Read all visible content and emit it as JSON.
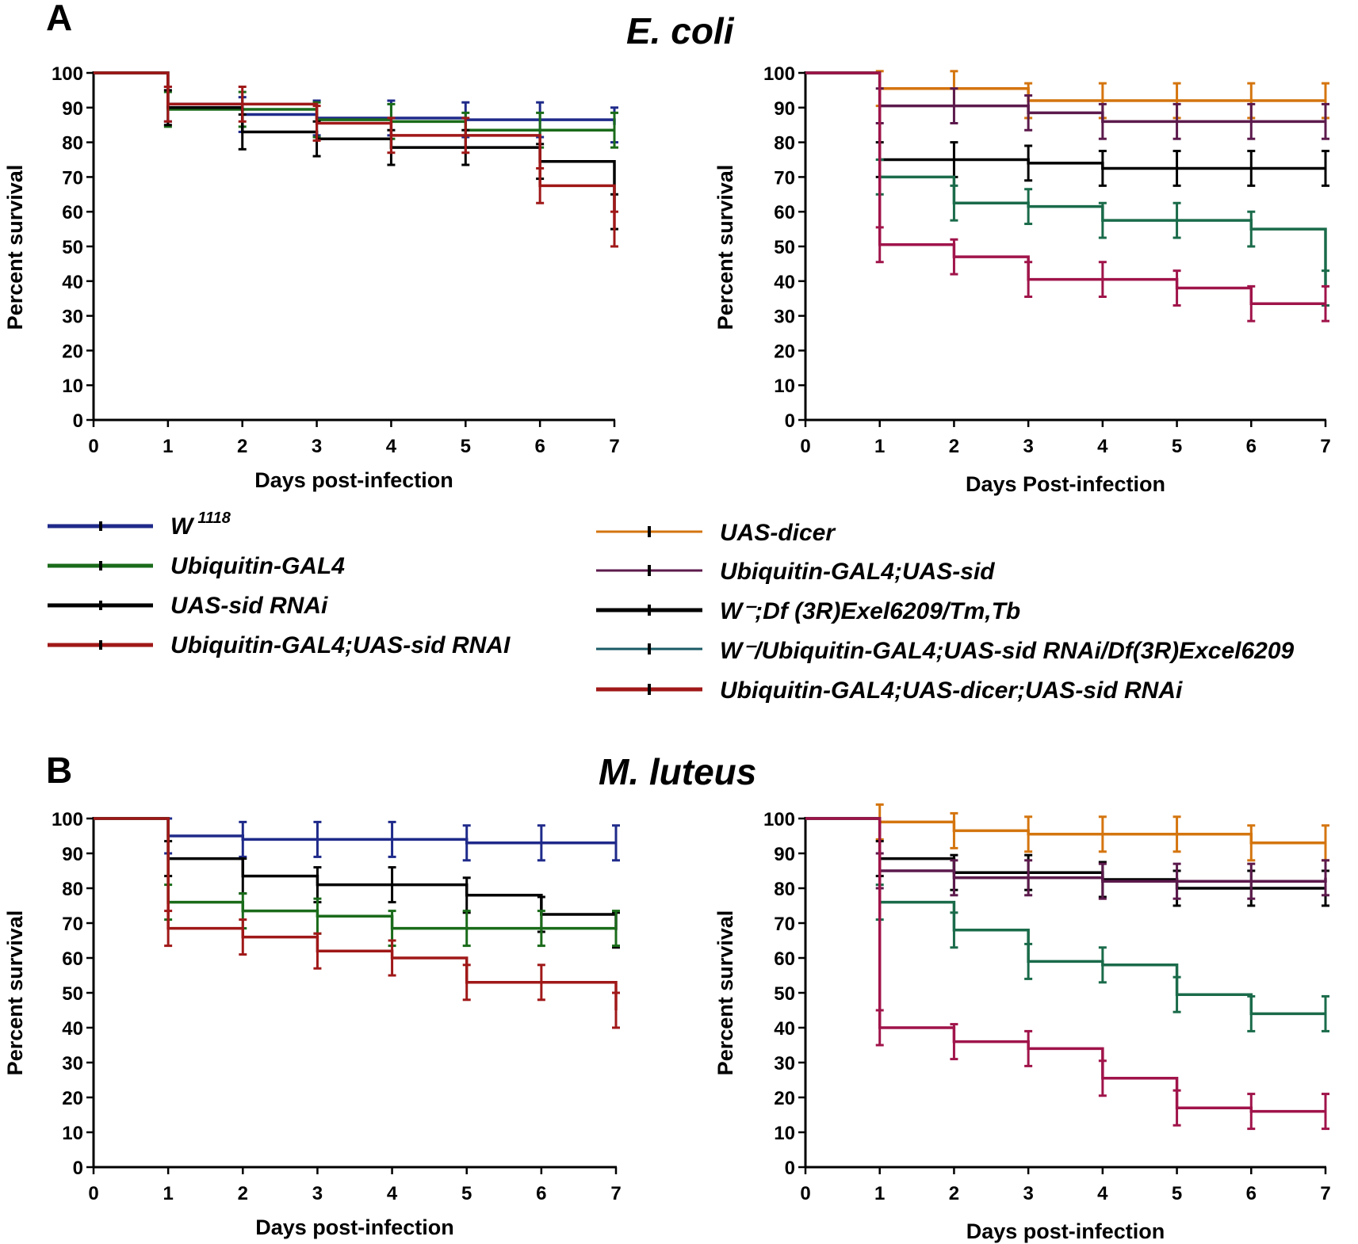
{
  "figure": {
    "panel_A": {
      "letter": "A",
      "title": "E. coli"
    },
    "panel_B": {
      "letter": "B",
      "title": "M. luteus"
    }
  },
  "legend_left": [
    {
      "label": "W",
      "sup": "1118",
      "color": "#1f2a8a"
    },
    {
      "label": "Ubiquitin-GAL4",
      "sup": "",
      "color": "#1a6b1a"
    },
    {
      "label": "UAS-sid RNAi",
      "sup": "",
      "color": "#000000"
    },
    {
      "label": "Ubiquitin-GAL4;UAS-sid RNAI",
      "sup": "",
      "color": "#a01818"
    }
  ],
  "legend_right": [
    {
      "label": "UAS-dicer",
      "color": "#d4750f"
    },
    {
      "label": "Ubiquitin-GAL4;UAS-sid",
      "color": "#5c1a4c"
    },
    {
      "label": "W⁻;Df (3R)Exel6209/Tm,Tb",
      "color": "#000000"
    },
    {
      "label": "W⁻/Ubiquitin-GAL4;UAS-sid RNAi/Df(3R)Excel6209",
      "color": "#1a5a66"
    },
    {
      "label": "Ubiquitin-GAL4;UAS-dicer;UAS-sid RNAi",
      "color": "#a01818"
    }
  ],
  "chart_data": [
    {
      "id": "A-left",
      "type": "line",
      "step": true,
      "xlabel": "Days post-infection",
      "ylabel": "Percent survival",
      "xlim": [
        0,
        7
      ],
      "ylim": [
        0,
        100
      ],
      "xticks": [
        0,
        1,
        2,
        3,
        4,
        5,
        6,
        7
      ],
      "yticks": [
        0,
        10,
        20,
        30,
        40,
        50,
        60,
        70,
        80,
        90,
        100
      ],
      "grid": false,
      "series": [
        {
          "name": "W 1118",
          "color": "#1f2a8a",
          "x": [
            0,
            1,
            2,
            3,
            4,
            5,
            6,
            7
          ],
          "y": [
            100,
            91,
            88,
            87,
            87,
            86.5,
            86.5,
            85
          ]
        },
        {
          "name": "Ubiquitin-GAL4",
          "color": "#1a6b1a",
          "x": [
            0,
            1,
            2,
            3,
            4,
            5,
            6,
            7
          ],
          "y": [
            100,
            89.5,
            89.5,
            86.5,
            86,
            83.5,
            83.5,
            83.5
          ]
        },
        {
          "name": "UAS-sid RNAi",
          "color": "#000000",
          "x": [
            0,
            1,
            2,
            3,
            4,
            5,
            6,
            7
          ],
          "y": [
            100,
            90,
            83,
            81,
            78.5,
            78.5,
            74.5,
            60
          ]
        },
        {
          "name": "Ubiquitin-GAL4;UAS-sid RNAI",
          "color": "#a01818",
          "x": [
            0,
            1,
            2,
            3,
            4,
            5,
            6,
            7
          ],
          "y": [
            100,
            91,
            91,
            85.5,
            82,
            82,
            67.5,
            55
          ]
        }
      ]
    },
    {
      "id": "A-right",
      "type": "line",
      "step": true,
      "xlabel": "Days Post-infection",
      "ylabel": "Percent survival",
      "xlim": [
        0,
        7
      ],
      "ylim": [
        0,
        100
      ],
      "xticks": [
        0,
        1,
        2,
        3,
        4,
        5,
        6,
        7
      ],
      "yticks": [
        0,
        10,
        20,
        30,
        40,
        50,
        60,
        70,
        80,
        90,
        100
      ],
      "grid": false,
      "series": [
        {
          "name": "UAS-dicer",
          "color": "#d4750f",
          "x": [
            0,
            1,
            2,
            3,
            4,
            5,
            6,
            7
          ],
          "y": [
            100,
            95.5,
            95.5,
            92,
            92,
            92,
            92,
            92
          ]
        },
        {
          "name": "Ubiquitin-GAL4;UAS-sid",
          "color": "#5c1a4c",
          "x": [
            0,
            1,
            2,
            3,
            4,
            5,
            6,
            7
          ],
          "y": [
            100,
            90.5,
            90.5,
            88.5,
            86,
            86,
            86,
            86
          ]
        },
        {
          "name": "W⁻;Df (3R)Exel6209/Tm,Tb",
          "color": "#000000",
          "x": [
            0,
            1,
            2,
            3,
            4,
            5,
            6,
            7
          ],
          "y": [
            100,
            75,
            75,
            74,
            72.5,
            72.5,
            72.5,
            72.5
          ]
        },
        {
          "name": "W⁻/Ubiquitin-GAL4;UAS-sid RNAi/Df(3R)Excel6209",
          "color": "#1a6b4a",
          "x": [
            0,
            1,
            2,
            3,
            4,
            5,
            6,
            7
          ],
          "y": [
            100,
            70,
            62.5,
            61.5,
            57.5,
            57.5,
            55,
            38
          ]
        },
        {
          "name": "Ubiquitin-GAL4;UAS-dicer;UAS-sid RNAi",
          "color": "#a0144a",
          "x": [
            0,
            1,
            2,
            3,
            4,
            5,
            6,
            7
          ],
          "y": [
            100,
            50.5,
            47,
            40.5,
            40.5,
            38,
            33.5,
            33.5
          ]
        }
      ]
    },
    {
      "id": "B-left",
      "type": "line",
      "step": true,
      "xlabel": "Days post-infection",
      "ylabel": "Percent survival",
      "xlim": [
        0,
        7
      ],
      "ylim": [
        0,
        100
      ],
      "xticks": [
        0,
        1,
        2,
        3,
        4,
        5,
        6,
        7
      ],
      "yticks": [
        0,
        10,
        20,
        30,
        40,
        50,
        60,
        70,
        80,
        90,
        100
      ],
      "grid": false,
      "series": [
        {
          "name": "W 1118",
          "color": "#1f2a8a",
          "x": [
            0,
            1,
            2,
            3,
            4,
            5,
            6,
            7
          ],
          "y": [
            100,
            95,
            94,
            94,
            94,
            93,
            93,
            93
          ]
        },
        {
          "name": "UAS-sid RNAi",
          "color": "#000000",
          "x": [
            0,
            1,
            2,
            3,
            4,
            5,
            6,
            7
          ],
          "y": [
            100,
            88.5,
            83.5,
            81,
            81,
            78,
            72.5,
            68
          ]
        },
        {
          "name": "Ubiquitin-GAL4",
          "color": "#1a6b1a",
          "x": [
            0,
            1,
            2,
            3,
            4,
            5,
            6,
            7
          ],
          "y": [
            100,
            76,
            73.5,
            72,
            68.5,
            68.5,
            68.5,
            68.5
          ]
        },
        {
          "name": "Ubiquitin-GAL4;UAS-sid RNAI",
          "color": "#a01818",
          "x": [
            0,
            1,
            2,
            3,
            4,
            5,
            6,
            7
          ],
          "y": [
            100,
            68.5,
            66,
            62,
            60,
            53,
            53,
            45
          ]
        }
      ]
    },
    {
      "id": "B-right",
      "type": "line",
      "step": true,
      "xlabel": "Days post-infection",
      "ylabel": "Percent survival",
      "xlim": [
        0,
        7
      ],
      "ylim": [
        0,
        100
      ],
      "xticks": [
        0,
        1,
        2,
        3,
        4,
        5,
        6,
        7
      ],
      "yticks": [
        0,
        10,
        20,
        30,
        40,
        50,
        60,
        70,
        80,
        90,
        100
      ],
      "grid": false,
      "series": [
        {
          "name": "UAS-dicer",
          "color": "#d4750f",
          "x": [
            0,
            1,
            2,
            3,
            4,
            5,
            6,
            7
          ],
          "y": [
            100,
            99,
            96.5,
            95.5,
            95.5,
            95.5,
            93,
            93
          ]
        },
        {
          "name": "W⁻;Df (3R)Exel6209/Tm,Tb",
          "color": "#000000",
          "x": [
            0,
            1,
            2,
            3,
            4,
            5,
            6,
            7
          ],
          "y": [
            100,
            88.5,
            84.5,
            84.5,
            82.5,
            80,
            80,
            80
          ]
        },
        {
          "name": "Ubiquitin-GAL4;UAS-sid",
          "color": "#5c1a4c",
          "x": [
            0,
            1,
            2,
            3,
            4,
            5,
            6,
            7
          ],
          "y": [
            100,
            85,
            83,
            83,
            82,
            82,
            82,
            83
          ]
        },
        {
          "name": "W⁻/Ubiquitin-GAL4;UAS-sid RNAi/Df(3R)Excel6209",
          "color": "#1a6b4a",
          "x": [
            0,
            1,
            2,
            3,
            4,
            5,
            6,
            7
          ],
          "y": [
            100,
            76,
            68,
            59,
            58,
            49.5,
            44,
            44
          ]
        },
        {
          "name": "Ubiquitin-GAL4;UAS-dicer;UAS-sid RNAi",
          "color": "#a0144a",
          "x": [
            0,
            1,
            2,
            3,
            4,
            5,
            6,
            7
          ],
          "y": [
            100,
            40,
            36,
            34,
            25.5,
            17,
            16,
            16
          ]
        }
      ]
    }
  ]
}
